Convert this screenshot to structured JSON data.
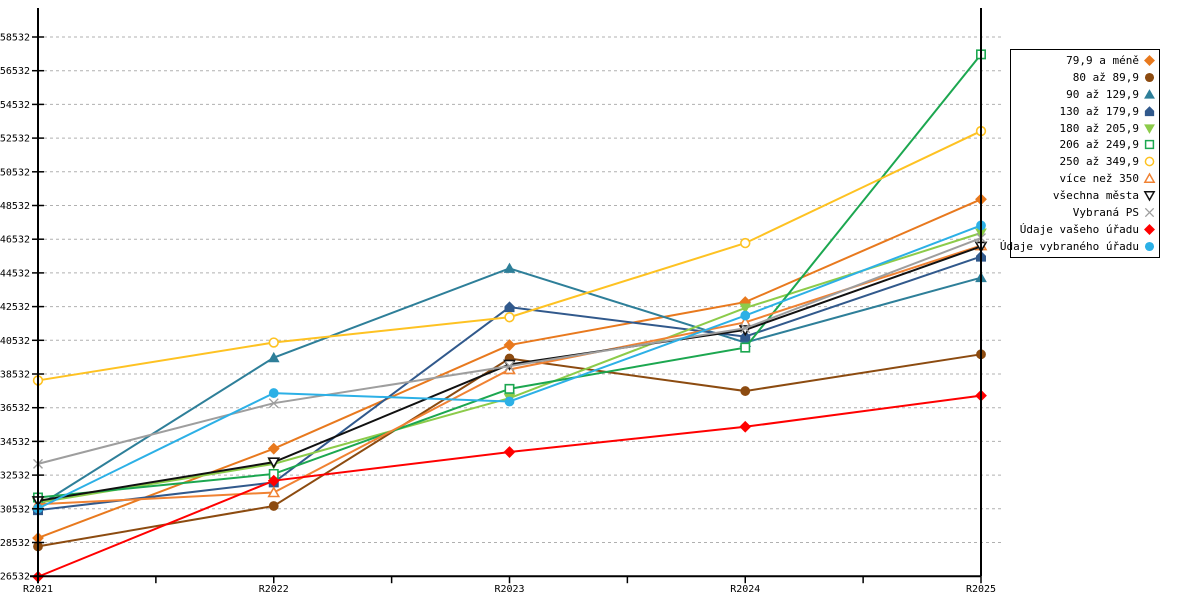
{
  "chart_data": {
    "type": "line",
    "title": "",
    "xlabel": "",
    "ylabel": "",
    "categories": [
      "R2021",
      "R2022",
      "R2023",
      "R2024",
      "R2025"
    ],
    "ylim": [
      26532,
      58532
    ],
    "ytick_step": 2000,
    "grid": "horizontal-dashed",
    "legend_position": "right",
    "grid_color": "#b0b0b0",
    "axis_color": "#000000",
    "series": [
      {
        "name": "79,9 a méně",
        "color": "#e8791e",
        "marker": "diamond",
        "filled": true,
        "values": [
          28800,
          34100,
          40250,
          42800,
          48900
        ]
      },
      {
        "name": "80 až 89,9",
        "color": "#8c4b10",
        "marker": "circle",
        "filled": true,
        "values": [
          28300,
          30700,
          39450,
          37520,
          39700
        ]
      },
      {
        "name": "90 až 129,9",
        "color": "#2e7f99",
        "marker": "triangle-up",
        "filled": true,
        "values": [
          30700,
          39500,
          44800,
          40400,
          44250
        ]
      },
      {
        "name": "130 až 179,9",
        "color": "#31598c",
        "marker": "house",
        "filled": true,
        "values": [
          30450,
          32100,
          42500,
          40750,
          45500
        ]
      },
      {
        "name": "180 až 205,9",
        "color": "#8ccb4a",
        "marker": "triangle-down",
        "filled": true,
        "values": [
          30900,
          33200,
          37100,
          42450,
          46900
        ]
      },
      {
        "name": "206 až 249,9",
        "color": "#1ca750",
        "marker": "square",
        "filled": false,
        "values": [
          31200,
          32600,
          37650,
          40100,
          57500
        ]
      },
      {
        "name": "250 až 349,9",
        "color": "#fec222",
        "marker": "circle",
        "filled": false,
        "values": [
          38150,
          40400,
          41900,
          46300,
          52950
        ]
      },
      {
        "name": "více než 350",
        "color": "#f08233",
        "marker": "triangle-up",
        "filled": false,
        "values": [
          30800,
          31500,
          38800,
          41600,
          46150
        ]
      },
      {
        "name": "všechna města",
        "color": "#111111",
        "marker": "triangle-down",
        "filled": false,
        "values": [
          31000,
          33300,
          39100,
          41150,
          46100
        ]
      },
      {
        "name": "Vybraná PS",
        "color": "#9e9e9e",
        "marker": "x",
        "filled": false,
        "values": [
          33200,
          36800,
          39000,
          41250,
          46600
        ]
      },
      {
        "name": "Údaje vašeho úřadu",
        "color": "#ff0000",
        "marker": "diamond",
        "filled": true,
        "values": [
          26500,
          32200,
          33900,
          35400,
          37250
        ]
      },
      {
        "name": "Údaje vybraného úřadu",
        "color": "#2cb0e6",
        "marker": "circle",
        "filled": true,
        "values": [
          30550,
          37400,
          36900,
          42000,
          47350
        ]
      }
    ]
  }
}
